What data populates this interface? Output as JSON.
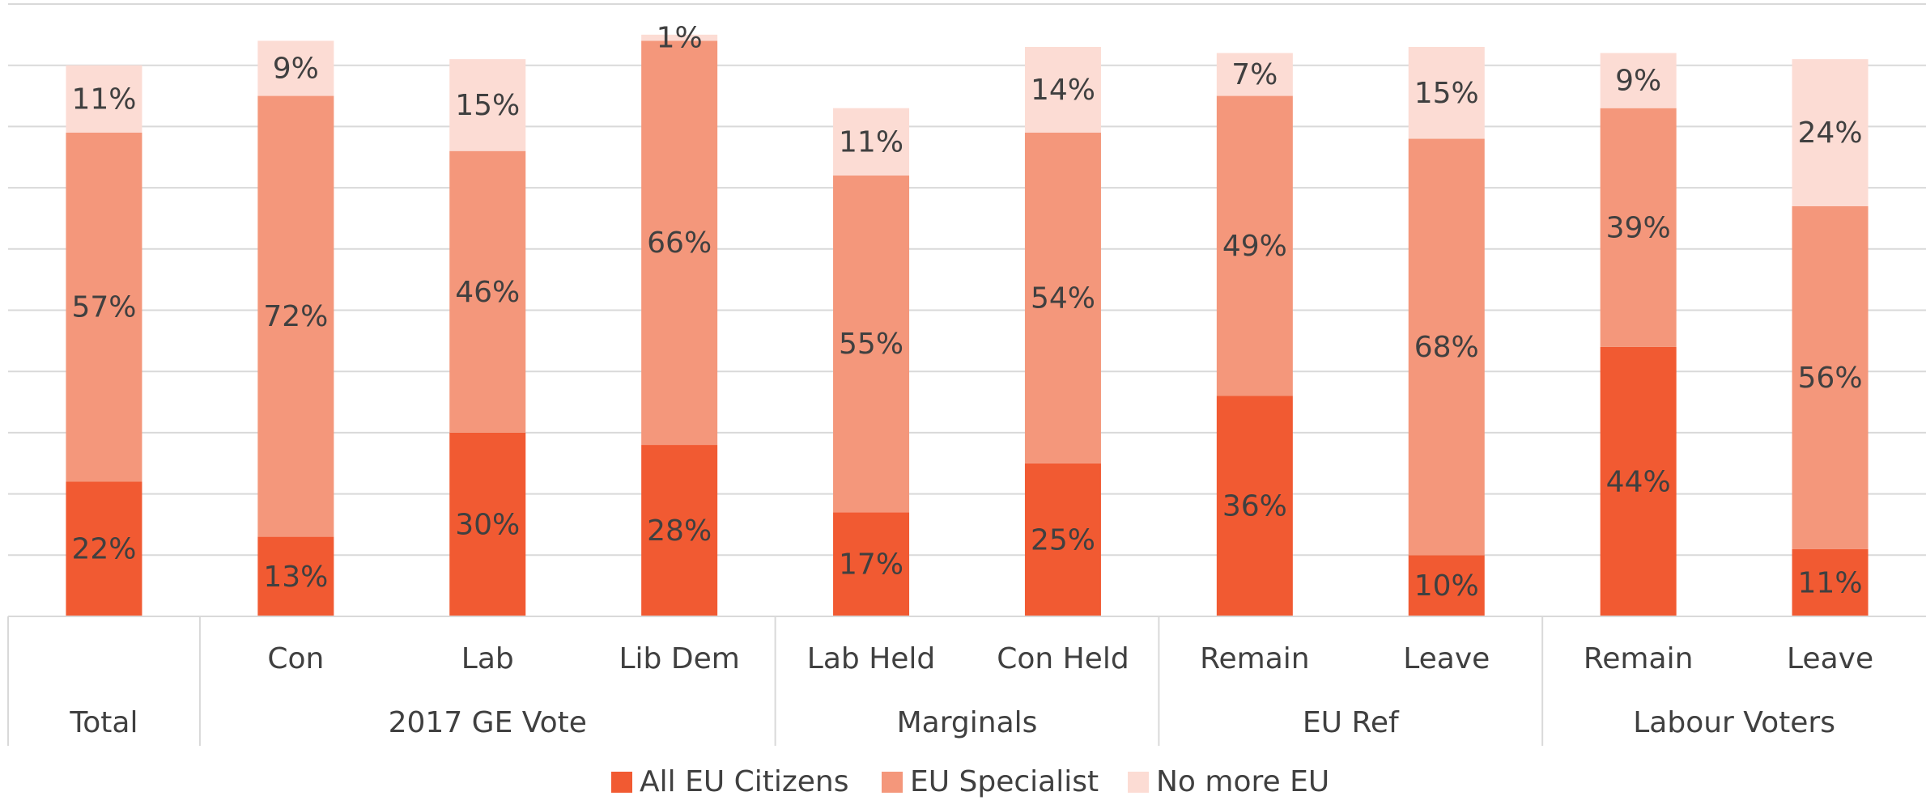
{
  "chart_data": {
    "type": "stacked_bar",
    "categories": [
      null,
      "Con",
      "Lab",
      "Lib Dem",
      "Lab Held",
      "Con Held",
      "Remain",
      "Leave",
      "Remain",
      "Leave"
    ],
    "groups": [
      {
        "name": "Total",
        "size": 1
      },
      {
        "name": "2017 GE Vote",
        "size": 3
      },
      {
        "name": "Marginals",
        "size": 2
      },
      {
        "name": "EU Ref",
        "size": 2
      },
      {
        "name": "Labour Voters",
        "size": 2
      }
    ],
    "series": [
      {
        "name": "All EU Citizens",
        "color": "#f15a32",
        "values": [
          22,
          13,
          30,
          28,
          17,
          25,
          36,
          10,
          44,
          11
        ],
        "value_labels": [
          "22%",
          "13%",
          "30%",
          "28%",
          "17%",
          "25%",
          "36%",
          "10%",
          "44%",
          "11%"
        ]
      },
      {
        "name": "EU Specialist",
        "color": "#f4977b",
        "values": [
          57,
          72,
          46,
          66,
          55,
          54,
          49,
          68,
          39,
          56
        ],
        "value_labels": [
          "57%",
          "72%",
          "46%",
          "66%",
          "55%",
          "54%",
          "49%",
          "68%",
          "39%",
          "56%"
        ]
      },
      {
        "name": "No more EU",
        "color": "#fcdcd4",
        "values": [
          11,
          9,
          15,
          1,
          11,
          14,
          7,
          15,
          9,
          24
        ],
        "value_labels": [
          "11%",
          "9%",
          "15%",
          "1%",
          "11%",
          "14%",
          "7%",
          "15%",
          "9%",
          "24%"
        ]
      }
    ],
    "ylim": [
      0,
      100
    ],
    "yticks": [
      0,
      10,
      20,
      30,
      40,
      50,
      60,
      70,
      80,
      90,
      100
    ],
    "grid": true,
    "legend": "bottom"
  }
}
